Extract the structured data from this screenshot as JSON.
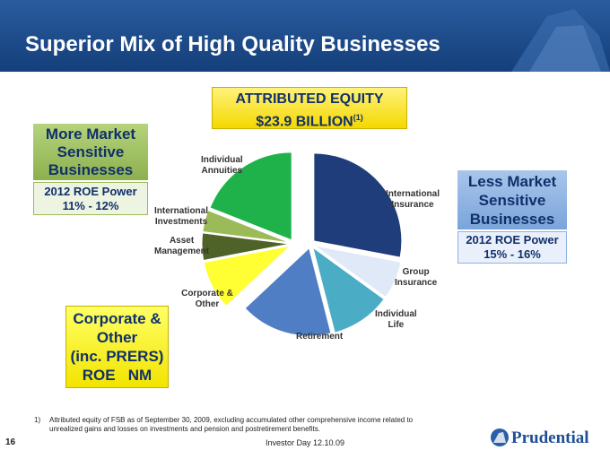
{
  "header": {
    "title": "Superior Mix of High Quality Businesses"
  },
  "equity_box": {
    "line1": "ATTRIBUTED EQUITY",
    "line2": "$23.9 BILLION",
    "note_mark": "(1)"
  },
  "left_box": {
    "title_lines": [
      "More Market",
      "Sensitive",
      "Businesses"
    ],
    "roe_lines": [
      "2012 ROE Power",
      "11% - 12%"
    ]
  },
  "right_box": {
    "title_lines": [
      "Less Market",
      "Sensitive",
      "Businesses"
    ],
    "roe_lines": [
      "2012 ROE Power",
      "15% - 16%"
    ]
  },
  "corporate_box": {
    "lines": [
      "Corporate &",
      "Other",
      "(inc. PRERS)",
      "ROE   NM"
    ]
  },
  "chart_data": {
    "type": "pie",
    "categories": [
      "International Insurance",
      "Group Insurance",
      "Individual Life",
      "Retirement",
      "Corporate & Other",
      "Asset Management",
      "International Investments",
      "Individual Annuities"
    ],
    "values": [
      28,
      7,
      11,
      17,
      9,
      5,
      4,
      19
    ],
    "colors": [
      "#1f3d7a",
      "#dfe9f8",
      "#4bacc6",
      "#4f7ec4",
      "#ffff33",
      "#4f6228",
      "#9bbb59",
      "#1fb24a"
    ]
  },
  "footnote": {
    "number": "1)",
    "text": "Attributed equity of FSB as of September 30, 2009, excluding accumulated other comprehensive income related to unrealized gains and losses on investments and pension and postretirement benefits."
  },
  "footer": {
    "page": "16",
    "event": "Investor Day 12.10.09",
    "logo": "Prudential"
  }
}
